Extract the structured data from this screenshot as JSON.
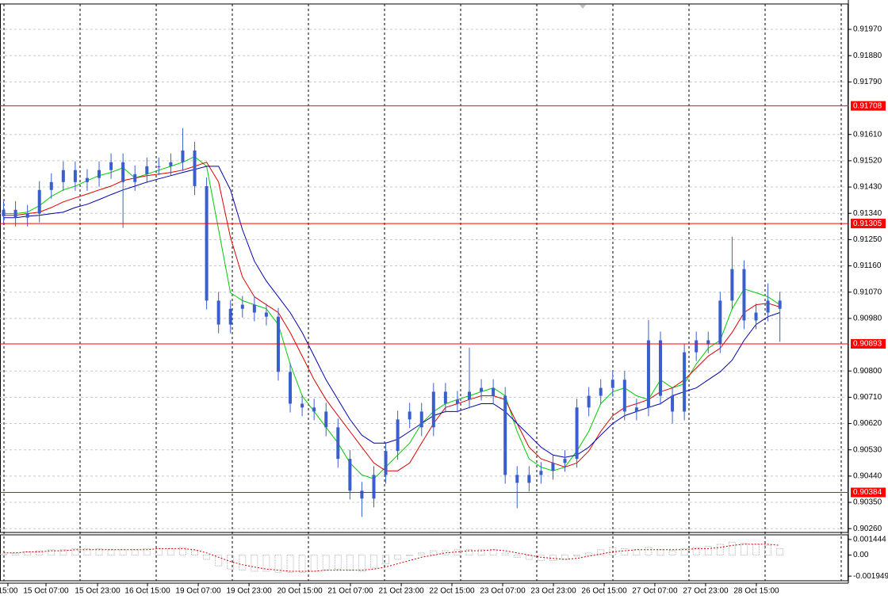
{
  "chart_data": [
    {
      "type": "candlestick",
      "color": "#3a5fcd",
      "grid": true,
      "xlim": [
        -0.3,
        70.6
      ],
      "ylim": [
        0.90247,
        0.92057
      ],
      "yticks": [
        {
          "value": 0.9197,
          "label": "0.91970"
        },
        {
          "value": 0.9188,
          "label": "0.91880"
        },
        {
          "value": 0.9179,
          "label": "0.91790"
        },
        {
          "value": 0.9161,
          "label": "0.91610"
        },
        {
          "value": 0.9152,
          "label": "0.91520"
        },
        {
          "value": 0.9143,
          "label": "0.91430"
        },
        {
          "value": 0.9134,
          "label": "0.91340"
        },
        {
          "value": 0.9125,
          "label": "0.91250"
        },
        {
          "value": 0.9116,
          "label": "0.91160"
        },
        {
          "value": 0.9107,
          "label": "0.91070"
        },
        {
          "value": 0.9098,
          "label": "0.90980"
        },
        {
          "value": 0.908,
          "label": "0.90800"
        },
        {
          "value": 0.9071,
          "label": "0.90710"
        },
        {
          "value": 0.9062,
          "label": "0.90620"
        },
        {
          "value": 0.9053,
          "label": "0.90530"
        },
        {
          "value": 0.9044,
          "label": "0.90440"
        },
        {
          "value": 0.9035,
          "label": "0.90350"
        },
        {
          "value": 0.9026,
          "label": "0.90260"
        }
      ],
      "xticks": [
        {
          "value": 0.36,
          "label": "15:00"
        },
        {
          "value": 3.55,
          "label": "15 Oct 07:00"
        },
        {
          "value": 7.87,
          "label": "15 Oct 23:00"
        },
        {
          "value": 12.05,
          "label": "16 Oct 15:00"
        },
        {
          "value": 16.3,
          "label": "19 Oct 07:00"
        },
        {
          "value": 20.55,
          "label": "19 Oct 23:00"
        },
        {
          "value": 24.8,
          "label": "20 Oct 15:00"
        },
        {
          "value": 29.04,
          "label": "21 Oct 07:00"
        },
        {
          "value": 33.3,
          "label": "21 Oct 23:00"
        },
        {
          "value": 37.54,
          "label": "22 Oct 15:00"
        },
        {
          "value": 41.79,
          "label": "23 Oct 07:00"
        },
        {
          "value": 46.04,
          "label": "23 Oct 23:00"
        },
        {
          "value": 50.29,
          "label": "26 Oct 15:00"
        },
        {
          "value": 54.53,
          "label": "27 Oct 07:00"
        },
        {
          "value": 58.78,
          "label": "27 Oct 23:00"
        },
        {
          "value": 63.03,
          "label": "28 Oct 15:00"
        }
      ],
      "levels": [
        0.91708,
        0.91305,
        0.90893,
        0.90384
      ],
      "level_color": "#ff0000",
      "open": [
        0.9133,
        0.91352,
        0.91325,
        0.91339,
        0.9142,
        0.91447,
        0.91488,
        0.91447,
        0.91461,
        0.91488,
        0.91515,
        0.91447,
        0.91474,
        0.91501,
        0.91501,
        0.91515,
        0.91555,
        0.91433,
        0.91041,
        0.90959,
        0.91013,
        0.91027,
        0.91,
        0.90986,
        0.90797,
        0.90688,
        0.90675,
        0.90661,
        0.90607,
        0.90499,
        0.9039,
        0.90363,
        0.90444,
        0.90526,
        0.90634,
        0.90661,
        0.90607,
        0.90729,
        0.90688,
        0.90702,
        0.90729,
        0.90742,
        0.90715,
        0.90444,
        0.90417,
        0.90444,
        0.90458,
        0.90485,
        0.90499,
        0.90675,
        0.90715,
        0.90742,
        0.9077,
        0.90661,
        0.90675,
        0.90905,
        0.90715,
        0.90661,
        0.90864,
        0.90905,
        0.90891,
        0.91041,
        0.91149,
        0.90973,
        0.91,
        0.91041
      ],
      "high": [
        0.91382,
        0.91382,
        0.91369,
        0.9145,
        0.91477,
        0.91518,
        0.91518,
        0.91491,
        0.91518,
        0.91545,
        0.91545,
        0.91504,
        0.91531,
        0.91531,
        0.91545,
        0.91631,
        0.91585,
        0.91463,
        0.91071,
        0.91043,
        0.91057,
        0.91057,
        0.9103,
        0.91016,
        0.90827,
        0.90718,
        0.90705,
        0.90691,
        0.90637,
        0.90529,
        0.9042,
        0.90474,
        0.90556,
        0.90664,
        0.90691,
        0.90691,
        0.90759,
        0.90759,
        0.90732,
        0.9088,
        0.90772,
        0.90772,
        0.90745,
        0.90474,
        0.90474,
        0.90488,
        0.90515,
        0.90529,
        0.90705,
        0.90745,
        0.90772,
        0.908,
        0.908,
        0.90705,
        0.90975,
        0.90935,
        0.90745,
        0.90894,
        0.90935,
        0.90935,
        0.91071,
        0.9126,
        0.91179,
        0.9103,
        0.911,
        0.91071
      ],
      "low": [
        0.913,
        0.91295,
        0.91295,
        0.91309,
        0.9139,
        0.91417,
        0.91417,
        0.91417,
        0.91431,
        0.91458,
        0.9129,
        0.91417,
        0.91444,
        0.91471,
        0.91471,
        0.91485,
        0.91403,
        0.91011,
        0.90929,
        0.90929,
        0.90983,
        0.9097,
        0.90956,
        0.90767,
        0.90658,
        0.90645,
        0.90631,
        0.90577,
        0.90469,
        0.9036,
        0.903,
        0.90333,
        0.90414,
        0.90496,
        0.90604,
        0.90577,
        0.90577,
        0.90658,
        0.90658,
        0.90672,
        0.90699,
        0.90685,
        0.90414,
        0.9033,
        0.90387,
        0.90414,
        0.90428,
        0.90455,
        0.90469,
        0.90645,
        0.90685,
        0.90712,
        0.90631,
        0.90631,
        0.90645,
        0.90685,
        0.9062,
        0.90631,
        0.90834,
        0.90861,
        0.90861,
        0.91011,
        0.90943,
        0.90943,
        0.9097,
        0.909
      ],
      "close": [
        0.91352,
        0.91325,
        0.91339,
        0.9142,
        0.91447,
        0.91488,
        0.91447,
        0.91461,
        0.91488,
        0.91515,
        0.91447,
        0.91474,
        0.91501,
        0.91501,
        0.91515,
        0.91555,
        0.91433,
        0.91041,
        0.90959,
        0.91013,
        0.91027,
        0.91,
        0.90986,
        0.90797,
        0.90688,
        0.90675,
        0.90661,
        0.90607,
        0.90499,
        0.9039,
        0.90363,
        0.90444,
        0.90526,
        0.90634,
        0.90661,
        0.90607,
        0.90729,
        0.90688,
        0.90702,
        0.90729,
        0.90742,
        0.90715,
        0.90444,
        0.90417,
        0.90444,
        0.90458,
        0.90485,
        0.90499,
        0.90675,
        0.90715,
        0.90742,
        0.9077,
        0.90661,
        0.90675,
        0.90905,
        0.90715,
        0.90661,
        0.90864,
        0.90905,
        0.90891,
        0.91041,
        0.91149,
        0.90973,
        0.91,
        0.91041,
        0.91013
      ],
      "series": [
        {
          "color": "#00cc00",
          "values": [
            0.91339,
            0.91339,
            0.91344,
            0.91366,
            0.91398,
            0.9142,
            0.91433,
            0.91452,
            0.91469,
            0.9148,
            0.91496,
            0.91461,
            0.91474,
            0.91488,
            0.91501,
            0.91515,
            0.91534,
            0.91501,
            0.91284,
            0.91068,
            0.91041,
            0.91027,
            0.91013,
            0.90959,
            0.90824,
            0.90715,
            0.90661,
            0.90607,
            0.90553,
            0.90485,
            0.90444,
            0.90431,
            0.90471,
            0.90512,
            0.90553,
            0.9062,
            0.90661,
            0.90688,
            0.90702,
            0.90715,
            0.90729,
            0.90742,
            0.90715,
            0.90593,
            0.90499,
            0.90471,
            0.90458,
            0.90471,
            0.90526,
            0.90593,
            0.90688,
            0.90729,
            0.90742,
            0.90715,
            0.90702,
            0.9077,
            0.90742,
            0.90756,
            0.90824,
            0.90878,
            0.90905,
            0.91013,
            0.91081,
            0.91068,
            0.91054,
            0.91027
          ]
        },
        {
          "color": "#dd0000",
          "values": [
            0.91333,
            0.91333,
            0.91339,
            0.91344,
            0.9136,
            0.91379,
            0.91393,
            0.91406,
            0.9142,
            0.91433,
            0.91452,
            0.91461,
            0.91469,
            0.91474,
            0.9148,
            0.91488,
            0.91501,
            0.91515,
            0.91447,
            0.91257,
            0.91122,
            0.91054,
            0.91027,
            0.91,
            0.90932,
            0.90851,
            0.9077,
            0.90702,
            0.90647,
            0.90593,
            0.90539,
            0.90485,
            0.90458,
            0.90458,
            0.90485,
            0.90553,
            0.9062,
            0.90675,
            0.90688,
            0.90702,
            0.90715,
            0.90715,
            0.90702,
            0.9062,
            0.90539,
            0.90499,
            0.90485,
            0.90471,
            0.90485,
            0.90526,
            0.90593,
            0.90647,
            0.90675,
            0.90688,
            0.90702,
            0.90729,
            0.90742,
            0.9077,
            0.9081,
            0.90851,
            0.90878,
            0.90932,
            0.91,
            0.91027,
            0.91032,
            0.91019
          ]
        },
        {
          "color": "#0000aa",
          "values": [
            0.91325,
            0.91325,
            0.9133,
            0.91333,
            0.91339,
            0.91344,
            0.9136,
            0.91371,
            0.91387,
            0.91404,
            0.9142,
            0.91433,
            0.91447,
            0.91458,
            0.91469,
            0.9148,
            0.9149,
            0.91501,
            0.91501,
            0.9142,
            0.91284,
            0.91176,
            0.91108,
            0.91054,
            0.91,
            0.90932,
            0.90851,
            0.9077,
            0.90702,
            0.90634,
            0.9058,
            0.90553,
            0.90553,
            0.90566,
            0.90593,
            0.9062,
            0.90647,
            0.90661,
            0.90661,
            0.90675,
            0.90688,
            0.90688,
            0.90661,
            0.9062,
            0.9058,
            0.90539,
            0.90512,
            0.90504,
            0.90512,
            0.90539,
            0.9058,
            0.9062,
            0.90647,
            0.90661,
            0.90675,
            0.90688,
            0.90715,
            0.90729,
            0.90742,
            0.9077,
            0.90797,
            0.90837,
            0.90905,
            0.90959,
            0.90986,
            0.91
          ]
        }
      ]
    },
    {
      "type": "bar",
      "xlim": [
        -0.3,
        70.6
      ],
      "ylim": [
        -0.00238,
        0.001877
      ],
      "yticks": [
        0.001444,
        {
          "value": 0,
          "label": "0.00"
        },
        -0.001949
      ],
      "series": [
        {
          "color": "#b0b0b0",
          "values": [
            0.0001,
            0.0002,
            0.0003,
            0.0004,
            0.0005,
            0.0005,
            0.0006,
            0.0006,
            0.0006,
            0.0005,
            0.0005,
            0.0005,
            0.0006,
            0.0006,
            0.0006,
            0.0007,
            0.0004,
            -0.0004,
            -0.001,
            -0.0013,
            -0.0014,
            -0.0015,
            -0.0015,
            -0.0016,
            -0.0016,
            -0.0016,
            -0.0015,
            -0.0014,
            -0.0013,
            -0.0014,
            -0.0015,
            -0.0012,
            -0.0008,
            -0.0004,
            0,
            0.0002,
            0.0004,
            0.0004,
            0.0005,
            0.0005,
            0.0005,
            0.0005,
            0.0002,
            -0.0002,
            -0.0004,
            -0.0005,
            -0.0005,
            -0.0004,
            -0.0001,
            0.0002,
            0.0005,
            0.0007,
            0.0006,
            0.0005,
            0.0007,
            0.0005,
            0.0004,
            0.0006,
            0.0007,
            0.0008,
            0.001,
            0.0012,
            0.0011,
            0.001,
            0.0009,
            0.0006
          ]
        },
        {
          "color": "#cc0000",
          "dashed": true,
          "values": [
            0.0002,
            0.0002,
            0.0003,
            0.0003,
            0.0004,
            0.0004,
            0.0005,
            0.0005,
            0.0005,
            0.0005,
            0.0005,
            0.0005,
            0.0005,
            0.0006,
            0.0006,
            0.0006,
            0.0005,
            0.0002,
            -0.0002,
            -0.0006,
            -0.0009,
            -0.0011,
            -0.0013,
            -0.0014,
            -0.0015,
            -0.0015,
            -0.0015,
            -0.0014,
            -0.0014,
            -0.0014,
            -0.0014,
            -0.0013,
            -0.0011,
            -0.0008,
            -0.0005,
            -0.0002,
            0,
            0.0002,
            0.0003,
            0.0004,
            0.0004,
            0.0005,
            0.0004,
            0.0002,
            0,
            -0.0002,
            -0.0003,
            -0.0004,
            -0.0003,
            -0.0001,
            0.0001,
            0.0003,
            0.0004,
            0.0005,
            0.0005,
            0.0005,
            0.0005,
            0.0005,
            0.0006,
            0.0006,
            0.0007,
            0.0009,
            0.001,
            0.001,
            0.001,
            0.0009
          ]
        }
      ]
    }
  ]
}
